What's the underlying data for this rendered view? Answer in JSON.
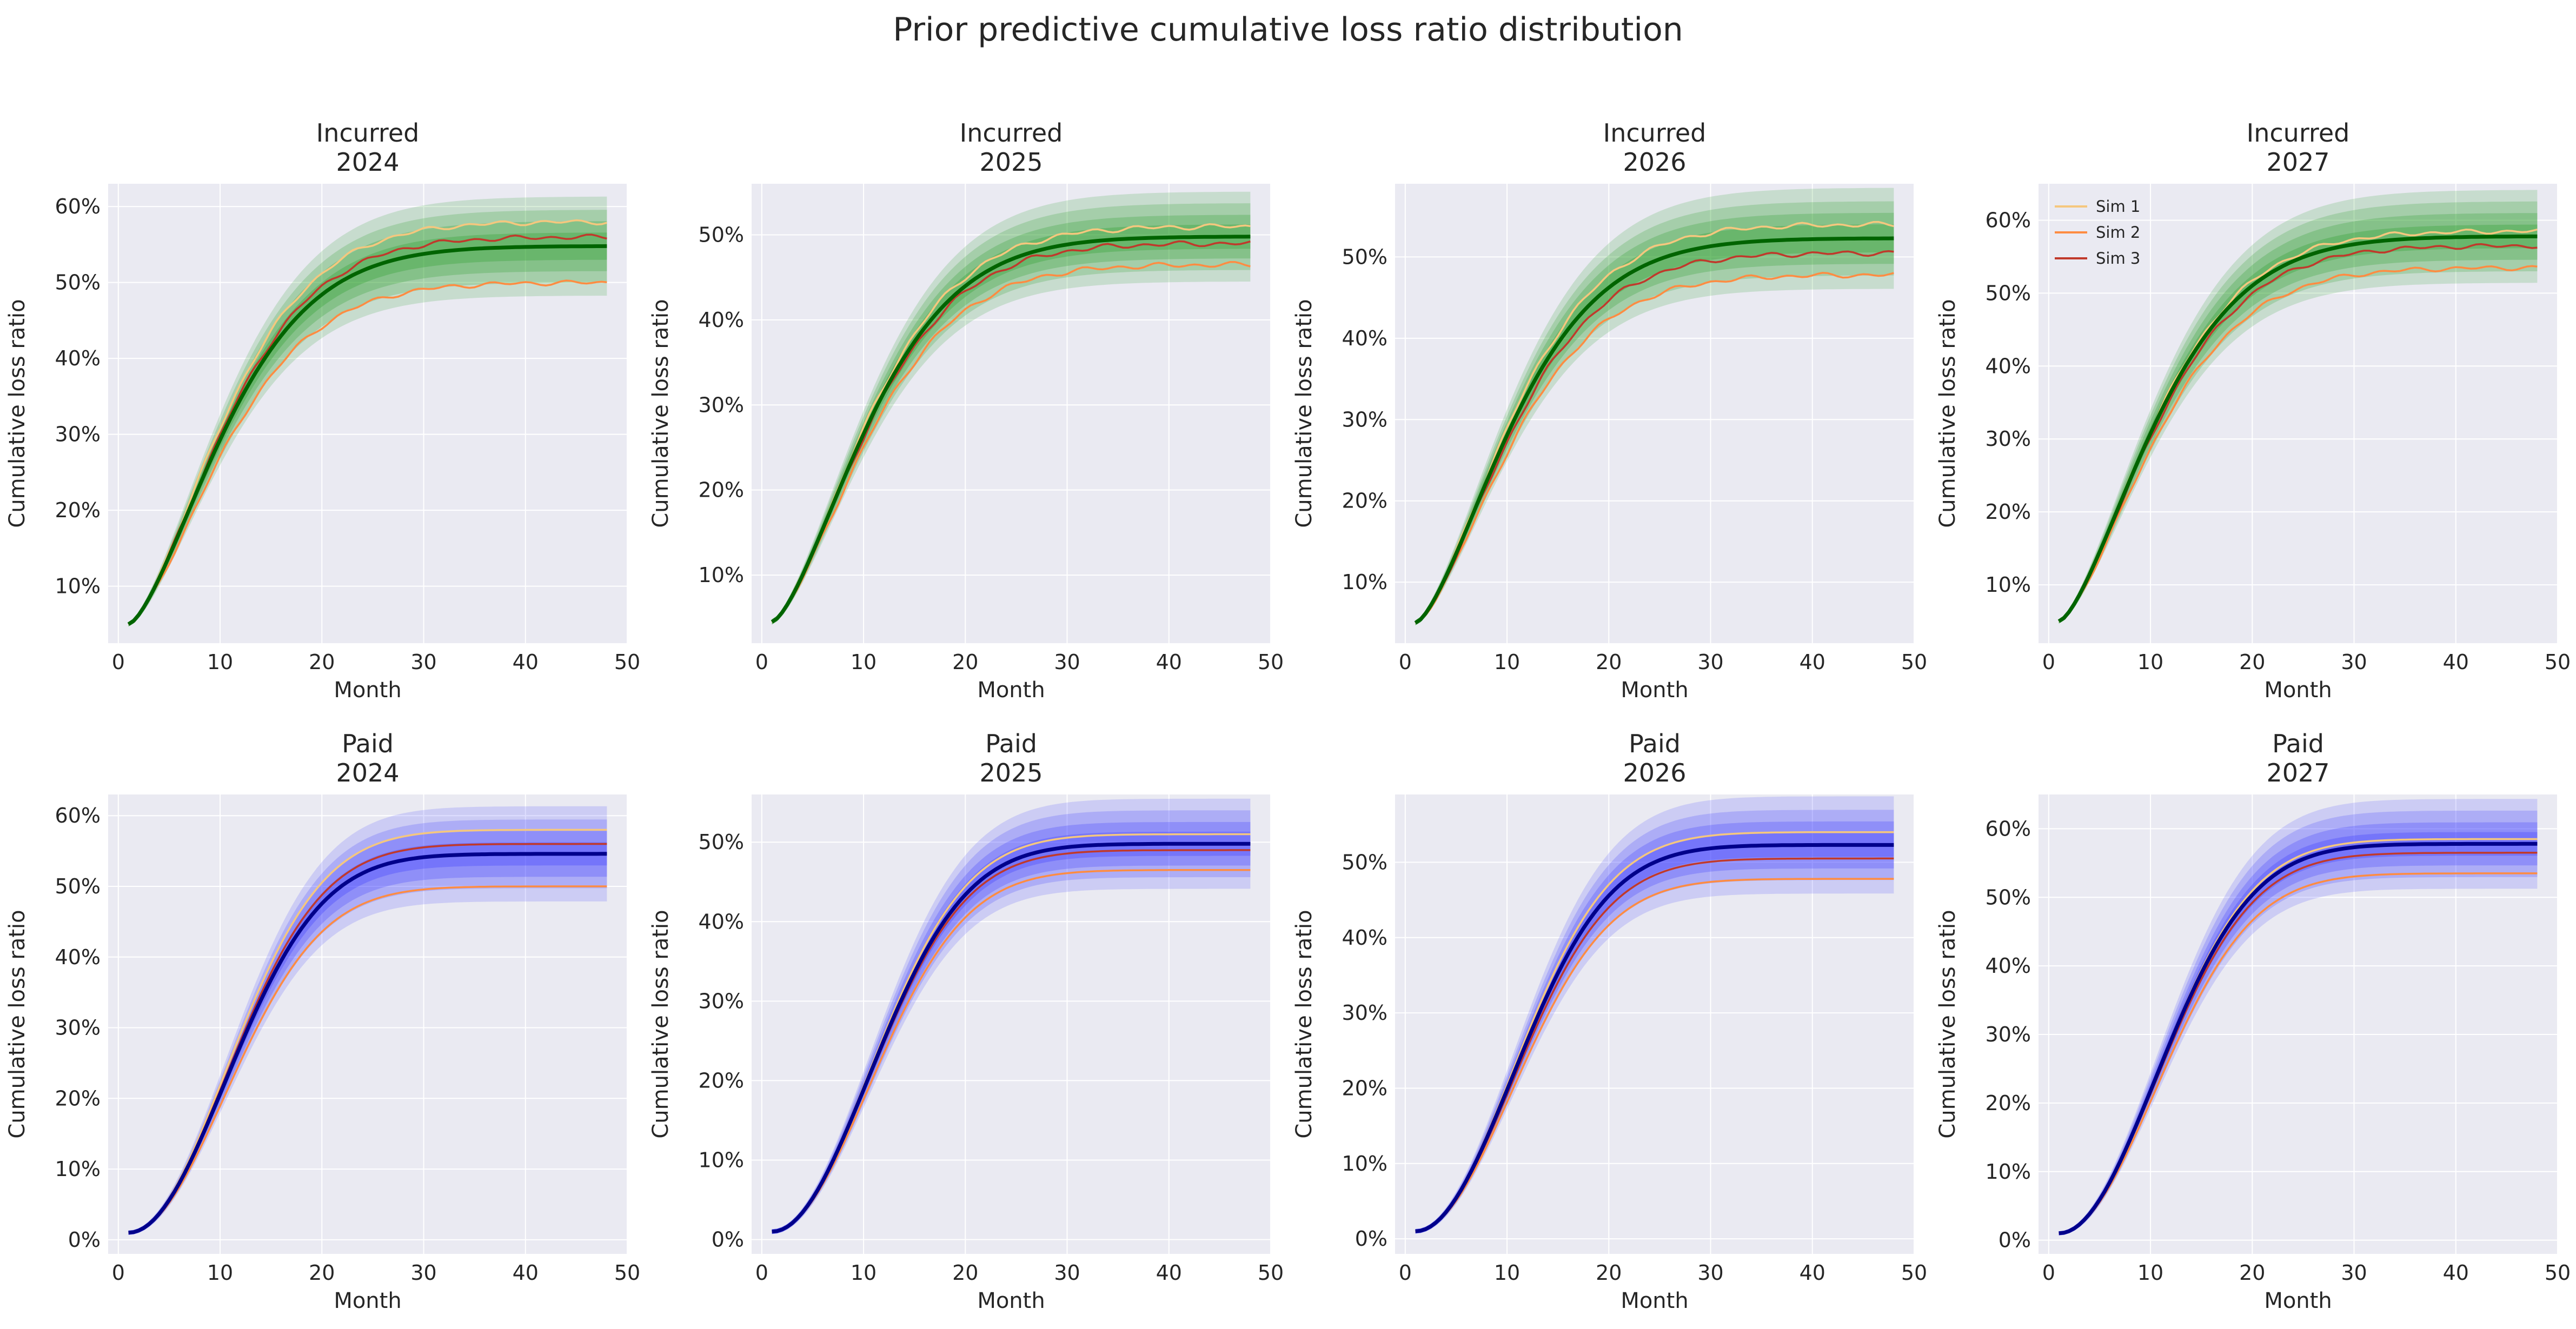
{
  "figure": {
    "title": "Prior predictive cumulative loss ratio distribution",
    "colors": {
      "background": "#ffffff",
      "axes_face": "#eaeaf2",
      "grid": "#ffffff",
      "text": "#262626",
      "incurred_band": "#2ca02c",
      "incurred_mean": "#006400",
      "paid_band": "#3333ff",
      "paid_mean": "#00008b",
      "sim1": "#f5c77e",
      "sim2": "#ff8c42",
      "sim3": "#c0392b"
    }
  },
  "chart_data": [
    {
      "type": "line",
      "kind": "incurred",
      "title_line1": "Incurred",
      "title_line2": "2024",
      "xlabel": "Month",
      "ylabel": "Cumulative loss ratio",
      "xlim": [
        -1,
        50
      ],
      "ylim": [
        2.5,
        63
      ],
      "xticks": [
        0,
        10,
        20,
        30,
        40,
        50
      ],
      "yticks": [
        10,
        20,
        30,
        40,
        50,
        60
      ],
      "ytick_labels": [
        "10%",
        "20%",
        "30%",
        "40%",
        "50%",
        "60%"
      ],
      "grid": true,
      "x_range": [
        1,
        48
      ],
      "start": 5,
      "mean_final": 54.8,
      "k": 0.085,
      "p": 1.5,
      "band_fracs": [
        0.25,
        0.18,
        0.12,
        0.06
      ],
      "sims": [
        {
          "name": "Sim 1",
          "final": 58.0
        },
        {
          "name": "Sim 2",
          "final": 50.0
        },
        {
          "name": "Sim 3",
          "final": 56.0
        }
      ],
      "legend": null
    },
    {
      "type": "line",
      "kind": "incurred",
      "title_line1": "Incurred",
      "title_line2": "2025",
      "xlabel": "Month",
      "ylabel": "Cumulative loss ratio",
      "xlim": [
        -1,
        50
      ],
      "ylim": [
        2,
        56
      ],
      "xticks": [
        0,
        10,
        20,
        30,
        40,
        50
      ],
      "yticks": [
        10,
        20,
        30,
        40,
        50
      ],
      "ytick_labels": [
        "10%",
        "20%",
        "30%",
        "40%",
        "50%"
      ],
      "grid": true,
      "x_range": [
        1,
        48
      ],
      "start": 4.5,
      "mean_final": 49.8,
      "k": 0.085,
      "p": 1.5,
      "band_fracs": [
        0.22,
        0.16,
        0.1,
        0.05
      ],
      "sims": [
        {
          "name": "Sim 1",
          "final": 51.0
        },
        {
          "name": "Sim 2",
          "final": 46.5
        },
        {
          "name": "Sim 3",
          "final": 49.0
        }
      ],
      "legend": null
    },
    {
      "type": "line",
      "kind": "incurred",
      "title_line1": "Incurred",
      "title_line2": "2026",
      "xlabel": "Month",
      "ylabel": "Cumulative loss ratio",
      "xlim": [
        -1,
        50
      ],
      "ylim": [
        2.5,
        59
      ],
      "xticks": [
        0,
        10,
        20,
        30,
        40,
        50
      ],
      "yticks": [
        10,
        20,
        30,
        40,
        50
      ],
      "ytick_labels": [
        "10%",
        "20%",
        "30%",
        "40%",
        "50%"
      ],
      "grid": true,
      "x_range": [
        1,
        48
      ],
      "start": 5,
      "mean_final": 52.3,
      "k": 0.085,
      "p": 1.5,
      "band_fracs": [
        0.25,
        0.18,
        0.12,
        0.06
      ],
      "sims": [
        {
          "name": "Sim 1",
          "final": 54.0
        },
        {
          "name": "Sim 2",
          "final": 47.8
        },
        {
          "name": "Sim 3",
          "final": 50.5
        }
      ],
      "legend": null
    },
    {
      "type": "line",
      "kind": "incurred",
      "title_line1": "Incurred",
      "title_line2": "2027",
      "xlabel": "Month",
      "ylabel": "Cumulative loss ratio",
      "xlim": [
        -1,
        50
      ],
      "ylim": [
        2,
        65
      ],
      "xticks": [
        0,
        10,
        20,
        30,
        40,
        50
      ],
      "yticks": [
        10,
        20,
        30,
        40,
        50,
        60
      ],
      "ytick_labels": [
        "10%",
        "20%",
        "30%",
        "40%",
        "50%",
        "60%"
      ],
      "grid": true,
      "x_range": [
        1,
        48
      ],
      "start": 5,
      "mean_final": 57.8,
      "k": 0.085,
      "p": 1.5,
      "band_fracs": [
        0.23,
        0.17,
        0.11,
        0.05
      ],
      "sims": [
        {
          "name": "Sim 1",
          "final": 58.5
        },
        {
          "name": "Sim 2",
          "final": 53.5
        },
        {
          "name": "Sim 3",
          "final": 56.5
        }
      ],
      "legend": {
        "placement": "upper-left",
        "entries": [
          "Sim 1",
          "Sim 2",
          "Sim 3"
        ]
      }
    },
    {
      "type": "line",
      "kind": "paid",
      "title_line1": "Paid",
      "title_line2": "2024",
      "xlabel": "Month",
      "ylabel": "Cumulative loss ratio",
      "xlim": [
        -1,
        50
      ],
      "ylim": [
        -2,
        63
      ],
      "xticks": [
        0,
        10,
        20,
        30,
        40,
        50
      ],
      "yticks": [
        0,
        10,
        20,
        30,
        40,
        50,
        60
      ],
      "ytick_labels": [
        "0%",
        "10%",
        "20%",
        "30%",
        "40%",
        "50%",
        "60%"
      ],
      "grid": true,
      "x_range": [
        1,
        48
      ],
      "start": 1,
      "mean_final": 54.6,
      "k": 0.075,
      "p": 2.0,
      "band_fracs": [
        0.24,
        0.17,
        0.11,
        0.05
      ],
      "sims": [
        {
          "name": "Sim 1",
          "final": 58.0
        },
        {
          "name": "Sim 2",
          "final": 50.0
        },
        {
          "name": "Sim 3",
          "final": 56.0
        }
      ],
      "legend": null
    },
    {
      "type": "line",
      "kind": "paid",
      "title_line1": "Paid",
      "title_line2": "2025",
      "xlabel": "Month",
      "ylabel": "Cumulative loss ratio",
      "xlim": [
        -1,
        50
      ],
      "ylim": [
        -1.8,
        56
      ],
      "xticks": [
        0,
        10,
        20,
        30,
        40,
        50
      ],
      "yticks": [
        0,
        10,
        20,
        30,
        40,
        50
      ],
      "ytick_labels": [
        "0%",
        "10%",
        "20%",
        "30%",
        "40%",
        "50%"
      ],
      "grid": true,
      "x_range": [
        1,
        48
      ],
      "start": 1,
      "mean_final": 49.8,
      "k": 0.075,
      "p": 2.0,
      "band_fracs": [
        0.22,
        0.16,
        0.1,
        0.05
      ],
      "sims": [
        {
          "name": "Sim 1",
          "final": 51.0
        },
        {
          "name": "Sim 2",
          "final": 46.5
        },
        {
          "name": "Sim 3",
          "final": 49.0
        }
      ],
      "legend": null
    },
    {
      "type": "line",
      "kind": "paid",
      "title_line1": "Paid",
      "title_line2": "2026",
      "xlabel": "Month",
      "ylabel": "Cumulative loss ratio",
      "xlim": [
        -1,
        50
      ],
      "ylim": [
        -2,
        59
      ],
      "xticks": [
        0,
        10,
        20,
        30,
        40,
        50
      ],
      "yticks": [
        0,
        10,
        20,
        30,
        40,
        50
      ],
      "ytick_labels": [
        "0%",
        "10%",
        "20%",
        "30%",
        "40%",
        "50%"
      ],
      "grid": true,
      "x_range": [
        1,
        48
      ],
      "start": 1,
      "mean_final": 52.3,
      "k": 0.075,
      "p": 2.0,
      "band_fracs": [
        0.24,
        0.17,
        0.11,
        0.05
      ],
      "sims": [
        {
          "name": "Sim 1",
          "final": 54.0
        },
        {
          "name": "Sim 2",
          "final": 47.8
        },
        {
          "name": "Sim 3",
          "final": 50.5
        }
      ],
      "legend": null
    },
    {
      "type": "line",
      "kind": "paid",
      "title_line1": "Paid",
      "title_line2": "2027",
      "xlabel": "Month",
      "ylabel": "Cumulative loss ratio",
      "xlim": [
        -1,
        50
      ],
      "ylim": [
        -2,
        65
      ],
      "xticks": [
        0,
        10,
        20,
        30,
        40,
        50
      ],
      "yticks": [
        0,
        10,
        20,
        30,
        40,
        50,
        60
      ],
      "ytick_labels": [
        "0%",
        "10%",
        "20%",
        "30%",
        "40%",
        "50%",
        "60%"
      ],
      "grid": true,
      "x_range": [
        1,
        48
      ],
      "start": 1,
      "mean_final": 57.8,
      "k": 0.075,
      "p": 2.0,
      "band_fracs": [
        0.22,
        0.16,
        0.1,
        0.05
      ],
      "sims": [
        {
          "name": "Sim 1",
          "final": 58.5
        },
        {
          "name": "Sim 2",
          "final": 53.5
        },
        {
          "name": "Sim 3",
          "final": 56.5
        }
      ],
      "legend": null
    }
  ]
}
